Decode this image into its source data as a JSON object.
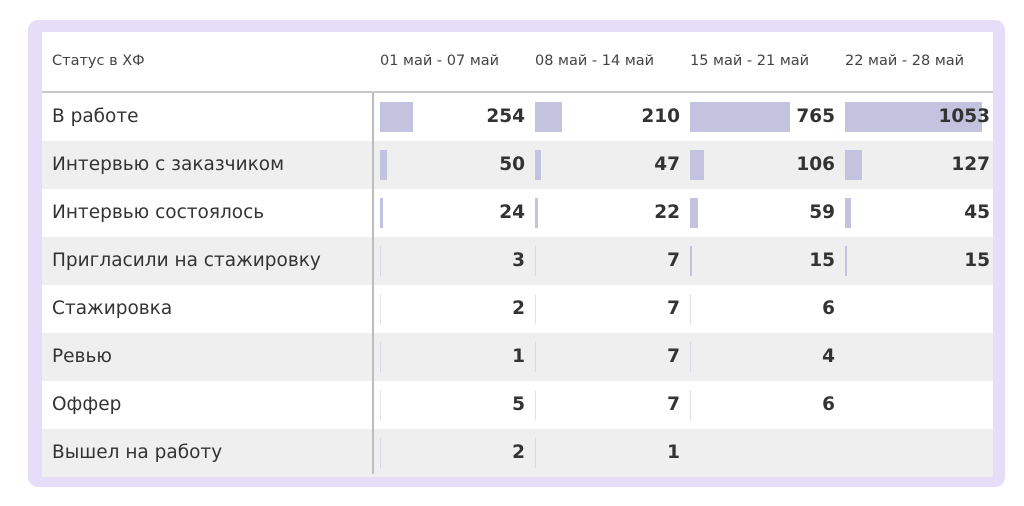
{
  "table": {
    "header_label": "Статус в ХФ",
    "columns": [
      "01 май - 07 май",
      "08 май - 14 май",
      "15 май - 21 май",
      "22 май - 28 май"
    ],
    "bar_color": "#c3c3df",
    "bar_max": 1053,
    "rows": [
      {
        "label": "В работе",
        "values": [
          254,
          210,
          765,
          1053
        ]
      },
      {
        "label": "Интервью с заказчиком",
        "values": [
          50,
          47,
          106,
          127
        ]
      },
      {
        "label": "Интервью состоялось",
        "values": [
          24,
          22,
          59,
          45
        ]
      },
      {
        "label": "Пригласили на стажировку",
        "values": [
          3,
          7,
          15,
          15
        ]
      },
      {
        "label": "Стажировка",
        "values": [
          2,
          7,
          6,
          null
        ]
      },
      {
        "label": "Ревью",
        "values": [
          1,
          7,
          4,
          null
        ]
      },
      {
        "label": "Оффер",
        "values": [
          5,
          7,
          6,
          null
        ]
      },
      {
        "label": "Вышел на работу",
        "values": [
          2,
          1,
          null,
          null
        ]
      }
    ]
  }
}
